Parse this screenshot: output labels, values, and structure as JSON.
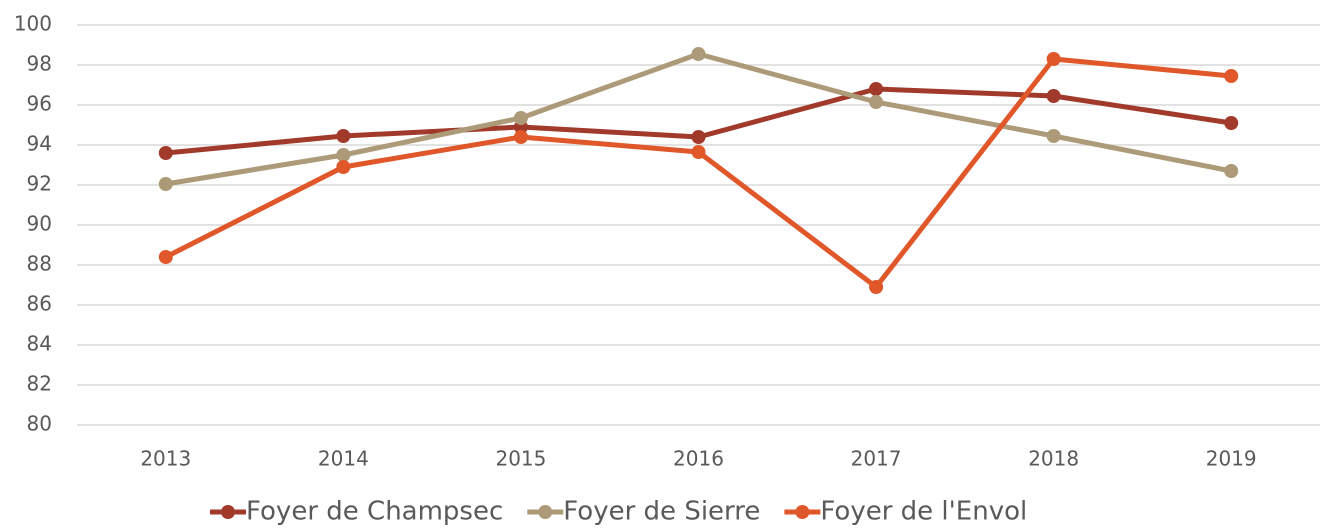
{
  "chart_data": {
    "type": "line",
    "categories": [
      "2013",
      "2014",
      "2015",
      "2016",
      "2017",
      "2018",
      "2019"
    ],
    "series": [
      {
        "name": "Foyer de Champsec",
        "color": "#a23a2c",
        "values": [
          93.6,
          94.45,
          94.9,
          94.4,
          96.8,
          96.45,
          95.1
        ]
      },
      {
        "name": "Foyer de Sierre",
        "color": "#ad9a78",
        "values": [
          92.05,
          93.5,
          95.35,
          98.55,
          96.15,
          94.45,
          92.7
        ]
      },
      {
        "name": "Foyer de l'Envol",
        "color": "#e0572a",
        "values": [
          88.4,
          92.9,
          94.4,
          93.65,
          86.9,
          98.3,
          97.45
        ]
      }
    ],
    "ylim": [
      80,
      100
    ],
    "yticks": [
      80,
      82,
      84,
      86,
      88,
      90,
      92,
      94,
      96,
      98,
      100
    ],
    "grid": true,
    "legend": "bottom"
  }
}
